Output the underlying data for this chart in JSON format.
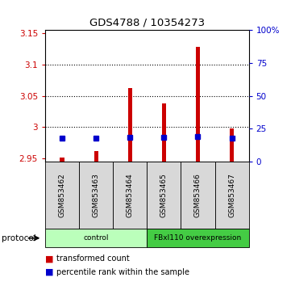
{
  "title": "GDS4788 / 10354273",
  "samples": [
    "GSM853462",
    "GSM853463",
    "GSM853464",
    "GSM853465",
    "GSM853466",
    "GSM853467"
  ],
  "red_values": [
    2.951,
    2.962,
    3.063,
    3.038,
    3.128,
    2.998
  ],
  "blue_values": [
    2.982,
    2.982,
    2.984,
    2.984,
    2.985,
    2.982
  ],
  "ylim_left": [
    2.945,
    3.155
  ],
  "yticks_left": [
    2.95,
    3.0,
    3.05,
    3.1,
    3.15
  ],
  "ytick_labels_left": [
    "2.95",
    "3",
    "3.05",
    "3.1",
    "3.15"
  ],
  "ylim_right": [
    0,
    100
  ],
  "yticks_right": [
    0,
    25,
    50,
    75,
    100
  ],
  "ytick_labels_right": [
    "0",
    "25",
    "50",
    "75",
    "100%"
  ],
  "groups": [
    {
      "label": "control",
      "n_samples": 3,
      "color": "#bbffbb"
    },
    {
      "label": "FBxl110 overexpression",
      "n_samples": 3,
      "color": "#44cc44"
    }
  ],
  "bar_bottom": 2.945,
  "red_color": "#cc0000",
  "blue_color": "#0000cc",
  "bg_color": "#d8d8d8",
  "plot_bg": "#ffffff",
  "left_tick_color": "#cc0000",
  "right_tick_color": "#0000cc",
  "legend_red": "transformed count",
  "legend_blue": "percentile rank within the sample",
  "protocol_label": "protocol",
  "bar_width": 0.12
}
